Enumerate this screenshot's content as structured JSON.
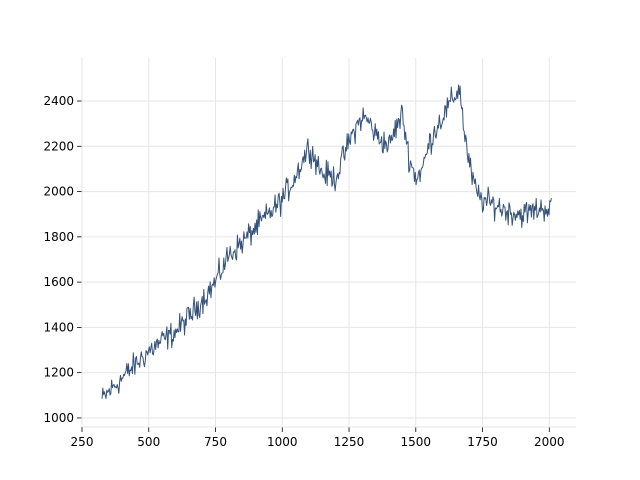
{
  "chart_data": {
    "type": "line",
    "title": "",
    "xlabel": "",
    "ylabel": "",
    "xlim": [
      250,
      2100
    ],
    "ylim": [
      960,
      2590
    ],
    "grid": true,
    "legend": "none",
    "x_ticks": [
      250,
      500,
      750,
      1000,
      1250,
      1500,
      1750,
      2000
    ],
    "y_ticks": [
      1000,
      1200,
      1400,
      1600,
      1800,
      2000,
      2200,
      2400
    ],
    "line_color": "#34527a",
    "grid_color": "#e6e6e6",
    "x_step": 3,
    "noise_amplitude": 35,
    "series": [
      {
        "x": [
          325,
          350,
          400,
          450,
          500,
          550,
          600,
          650,
          700,
          750,
          800,
          850,
          900,
          950,
          1000,
          1050,
          1100,
          1150,
          1200,
          1250,
          1275,
          1300,
          1325,
          1350,
          1400,
          1425,
          1450,
          1475,
          1500,
          1525,
          1550,
          1575,
          1600,
          1625,
          1650,
          1665,
          1680,
          1700,
          1725,
          1750,
          1800,
          1850,
          1900,
          1950,
          2000,
          2010
        ],
        "values": [
          1080,
          1115,
          1175,
          1235,
          1295,
          1340,
          1380,
          1445,
          1520,
          1600,
          1720,
          1775,
          1840,
          1900,
          1965,
          2070,
          2200,
          2080,
          2060,
          2220,
          2280,
          2330,
          2310,
          2250,
          2200,
          2280,
          2340,
          2150,
          2060,
          2100,
          2210,
          2280,
          2330,
          2380,
          2430,
          2460,
          2280,
          2120,
          2000,
          1960,
          1940,
          1910,
          1900,
          1920,
          1930,
          1950
        ]
      }
    ]
  }
}
